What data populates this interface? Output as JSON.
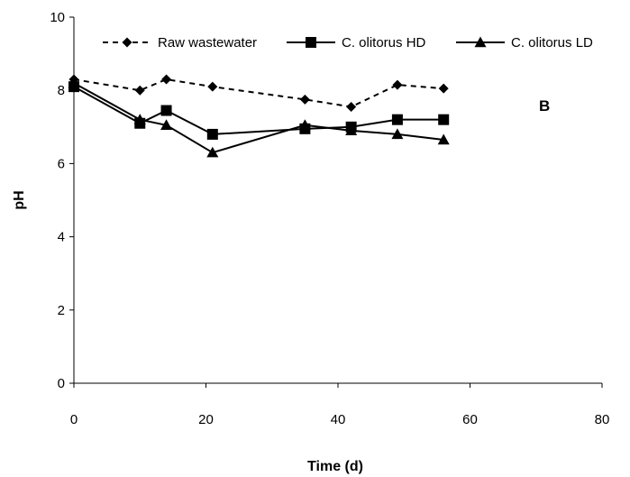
{
  "chart_data": {
    "type": "line",
    "panel_label": "B",
    "xlabel": "Time (d)",
    "ylabel": "pH",
    "xlim": [
      0,
      80
    ],
    "ylim": [
      0,
      10
    ],
    "xticks": [
      0,
      20,
      40,
      60,
      80
    ],
    "yticks": [
      0,
      2,
      4,
      6,
      8,
      10
    ],
    "grid": false,
    "legend_position": "top",
    "series": [
      {
        "name": "Raw wastewater",
        "marker": "diamond",
        "line_style": "dashed",
        "color": "#000000",
        "x": [
          0,
          10,
          14,
          21,
          35,
          42,
          49,
          56
        ],
        "y": [
          8.3,
          8.0,
          8.3,
          8.1,
          7.75,
          7.55,
          8.15,
          8.05
        ]
      },
      {
        "name": "C. olitorus HD",
        "marker": "square",
        "line_style": "solid",
        "color": "#000000",
        "x": [
          0,
          10,
          14,
          21,
          35,
          42,
          49,
          56
        ],
        "y": [
          8.1,
          7.1,
          7.45,
          6.8,
          6.95,
          7.0,
          7.2,
          7.2
        ]
      },
      {
        "name": "C. olitorus LD",
        "marker": "triangle",
        "line_style": "solid",
        "color": "#000000",
        "x": [
          0,
          10,
          14,
          21,
          35,
          42,
          49,
          56
        ],
        "y": [
          8.2,
          7.2,
          7.05,
          6.3,
          7.05,
          6.9,
          6.8,
          6.65
        ]
      }
    ]
  }
}
